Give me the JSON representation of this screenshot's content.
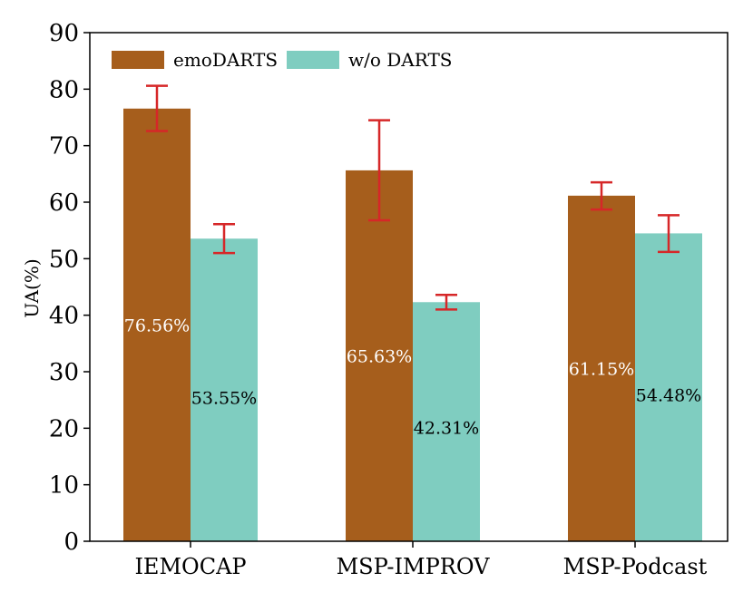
{
  "chart_data": {
    "type": "bar",
    "title": "",
    "xlabel": "",
    "ylabel": "UA(%)",
    "ylim": [
      0,
      90
    ],
    "yticks": [
      0,
      10,
      20,
      30,
      40,
      50,
      60,
      70,
      80,
      90
    ],
    "categories": [
      "IEMOCAP",
      "MSP-IMPROV",
      "MSP-Podcast"
    ],
    "legend_position": "top-left",
    "grid": false,
    "series": [
      {
        "name": "emoDARTS",
        "color": "#a65e1c",
        "label_color": "#ffffff",
        "values": [
          76.56,
          65.63,
          61.15
        ],
        "labels": [
          "76.56%",
          "65.63%",
          "61.15%"
        ],
        "error_low": [
          72.6,
          56.8,
          58.7
        ],
        "error_high": [
          80.6,
          74.5,
          63.5
        ]
      },
      {
        "name": "w/o DARTS",
        "color": "#7fcdc0",
        "label_color": "#000000",
        "values": [
          53.55,
          42.31,
          54.48
        ],
        "labels": [
          "53.55%",
          "42.31%",
          "54.48%"
        ],
        "error_low": [
          51.0,
          41.0,
          51.2
        ],
        "error_high": [
          56.1,
          43.6,
          57.7
        ]
      }
    ],
    "error_bar_color": "#d62728"
  }
}
